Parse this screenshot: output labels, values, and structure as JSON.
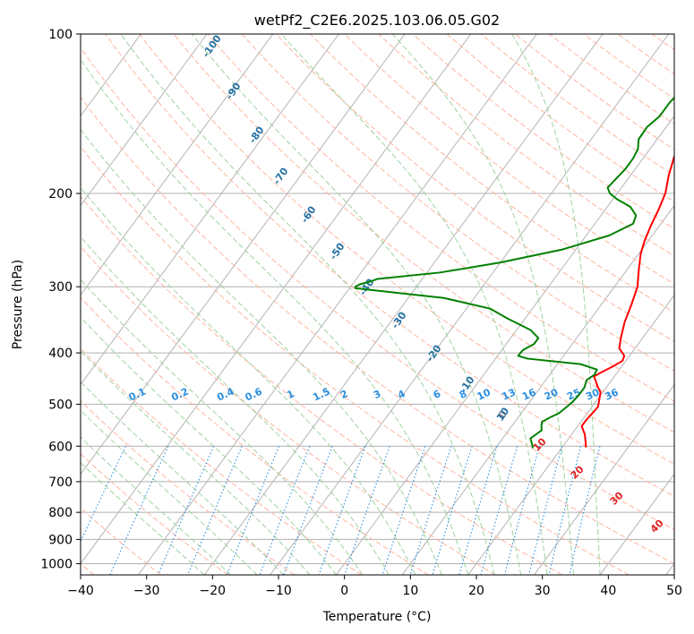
{
  "chart_data": {
    "type": "line",
    "title": "wetPf2_C2E6.2025.103.06.05.G02",
    "xlabel": "Temperature (°C)",
    "ylabel": "Pressure (hPa)",
    "xlim": [
      -40,
      50
    ],
    "ylim": [
      1050,
      100
    ],
    "y_scale": "log",
    "x_ticks": [
      "−40",
      "−30",
      "−20",
      "−10",
      "0",
      "10",
      "20",
      "30",
      "40",
      "50"
    ],
    "y_ticks": [
      {
        "p": 100,
        "label": "100"
      },
      {
        "p": 200,
        "label": "200"
      },
      {
        "p": 300,
        "label": "300"
      },
      {
        "p": 400,
        "label": "400"
      },
      {
        "p": 500,
        "label": "500"
      },
      {
        "p": 600,
        "label": "600"
      },
      {
        "p": 700,
        "label": "700"
      },
      {
        "p": 800,
        "label": "800"
      },
      {
        "p": 900,
        "label": "900"
      },
      {
        "p": 1000,
        "label": "1000"
      }
    ],
    "grid": true,
    "colors": {
      "temperature": "#ff0000",
      "dewpoint": "#008000",
      "isotherm": "#b4b4b4",
      "dry_adiabat": "#ffb4a0",
      "moist_adiabat": "#a0d2a0",
      "mixing_ratio": "#2a8fe0",
      "dry_adiabat_labels": "#2471a3",
      "moist_adiabat_labels": "#dd2222"
    },
    "series": [
      {
        "key": "temperature",
        "points": [
          [
            603,
            23.6
          ],
          [
            590,
            23
          ],
          [
            570,
            22
          ],
          [
            550,
            20.6
          ],
          [
            535,
            20.6
          ],
          [
            520,
            20.8
          ],
          [
            505,
            20.9
          ],
          [
            490,
            20.3
          ],
          [
            475,
            19.7
          ],
          [
            462,
            18.5
          ],
          [
            452,
            17.7
          ],
          [
            443,
            16.9
          ],
          [
            435,
            17.6
          ],
          [
            425,
            18.6
          ],
          [
            414,
            19.5
          ],
          [
            405,
            19.2
          ],
          [
            392,
            17.6
          ],
          [
            375,
            16.7
          ],
          [
            350,
            15.5
          ],
          [
            325,
            14.6
          ],
          [
            300,
            13.5
          ],
          [
            280,
            11.9
          ],
          [
            260,
            10.3
          ],
          [
            245,
            9.4
          ],
          [
            230,
            8.7
          ],
          [
            215,
            8.1
          ],
          [
            200,
            7.3
          ],
          [
            185,
            5.8
          ],
          [
            170,
            4.5
          ],
          [
            158,
            3.7
          ],
          [
            145,
            2.3
          ],
          [
            132,
            0.9
          ],
          [
            120,
            -0.2
          ],
          [
            110,
            -1.2
          ],
          [
            104,
            -1.6
          ],
          [
            100,
            -1.5
          ]
        ]
      },
      {
        "key": "dewpoint",
        "points": [
          [
            605,
            15.6
          ],
          [
            600,
            15.4
          ],
          [
            590,
            14.8
          ],
          [
            580,
            14.2
          ],
          [
            570,
            14.6
          ],
          [
            560,
            15
          ],
          [
            550,
            14.5
          ],
          [
            540,
            14.1
          ],
          [
            530,
            14.8
          ],
          [
            520,
            15.7
          ],
          [
            505,
            16.2
          ],
          [
            495,
            16.5
          ],
          [
            480,
            16.7
          ],
          [
            465,
            16.7
          ],
          [
            450,
            16.2
          ],
          [
            440,
            16.8
          ],
          [
            430,
            16.6
          ],
          [
            420,
            13.5
          ],
          [
            410,
            4.8
          ],
          [
            405,
            3.1
          ],
          [
            395,
            3.2
          ],
          [
            385,
            4.2
          ],
          [
            375,
            4.2
          ],
          [
            362,
            2.1
          ],
          [
            345,
            -2.5
          ],
          [
            330,
            -6.4
          ],
          [
            315,
            -14.6
          ],
          [
            308,
            -22.3
          ],
          [
            302,
            -29.1
          ],
          [
            300,
            -29.3
          ],
          [
            297,
            -28.9
          ],
          [
            293,
            -27.5
          ],
          [
            290,
            -26.8
          ],
          [
            282,
            -18
          ],
          [
            270,
            -10
          ],
          [
            255,
            -2
          ],
          [
            240,
            3.5
          ],
          [
            228,
            5.8
          ],
          [
            220,
            5.3
          ],
          [
            212,
            3.5
          ],
          [
            205,
            0.6
          ],
          [
            200,
            -1.1
          ],
          [
            195,
            -2.1
          ],
          [
            190,
            -1.9
          ],
          [
            180,
            -1.5
          ],
          [
            172,
            -1.5
          ],
          [
            165,
            -1.8
          ],
          [
            158,
            -2.8
          ],
          [
            150,
            -2.9
          ],
          [
            143,
            -2.2
          ],
          [
            135,
            -2.2
          ],
          [
            128,
            -1.8
          ],
          [
            120,
            -1.6
          ],
          [
            112,
            -1.7
          ],
          [
            106,
            -1.4
          ],
          [
            100,
            -0.7
          ]
        ]
      }
    ],
    "dry_adiabat_labels": [
      "-100",
      "-90",
      "-80",
      "-70",
      "-60",
      "-50",
      "-40",
      "-30",
      "-20",
      "-10",
      "0",
      "10"
    ],
    "moist_adiabat_labels": [
      "10",
      "20",
      "30",
      "40"
    ],
    "mixing_ratio_labels": [
      "0.1",
      "0.2",
      "0.4",
      "0.6",
      "1",
      "1.5",
      "2",
      "3",
      "4",
      "6",
      "8",
      "10",
      "13",
      "16",
      "20",
      "25",
      "30",
      "36"
    ]
  }
}
